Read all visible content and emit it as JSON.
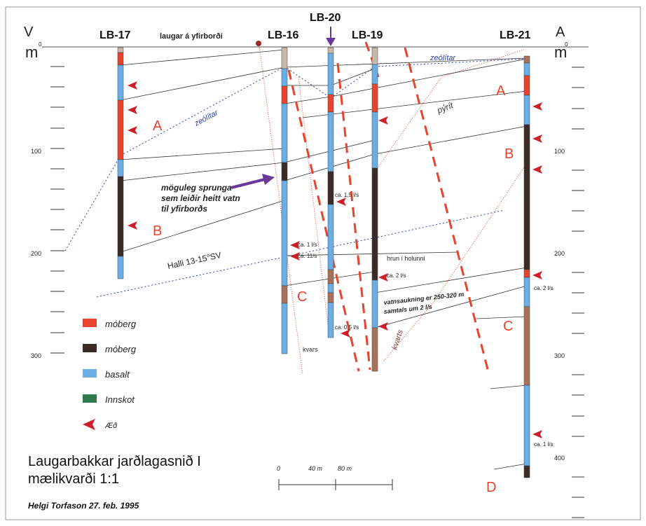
{
  "colors": {
    "moberg_red": "#e8432c",
    "moberg_dark": "#3a2a28",
    "basalt": "#6aaee6",
    "innskot": "#2f7a4a",
    "arrow": "#cc1f2a",
    "dash": "#e8432c",
    "dotted": "#2b3fb0",
    "purple_arrow": "#6a3a9a"
  },
  "labels": {
    "axis_left_letter": "V",
    "axis_right_letter": "A",
    "axis_unit": "m",
    "axis_zero": "0",
    "tick_100": "100",
    "tick_200": "200",
    "tick_300": "300",
    "tick_400": "400",
    "well_lb17": "LB-17",
    "well_lb16": "LB-16",
    "well_lb20": "LB-20",
    "well_lb19": "LB-19",
    "well_lb21": "LB-21",
    "surface_spring": "laugar á yfirborði",
    "zeolitar_top": "zeólítar",
    "zeolitar_mid": "zeólítar",
    "pyrit": "pýrít",
    "kvars_lb16": "kvars",
    "kvars_lb19": "kvarts",
    "fracture_1": "möguleg sprunga",
    "fracture_2": "sem leiðir heitt vatn",
    "fracture_3": "til yfirborðs",
    "halli": "Halli 13-15°SV",
    "hrun": "hrun í holunni",
    "vatn_1": "vatnsaukning er 250-320 m",
    "vatn_2": "samtals um 2 l/s",
    "zone_A_left": "A",
    "zone_B_left": "B",
    "zone_C_mid": "C",
    "zone_A_right": "A",
    "zone_B_right": "B",
    "zone_C_right": "C",
    "zone_D_right": "D",
    "flow_lb20_1": "ca. 1,5 l/s",
    "flow_lb16_1": "ca. 1 l/s",
    "flow_lb16_2": "ca. 11/s",
    "flow_lb19_1": "ca. 2 l/s",
    "flow_lb20_2": "ca. 0,5 l/s",
    "flow_lb21_1": "ca. 2 l/s",
    "flow_lb21_2": "ca. 1 l/s",
    "scale_0": "0",
    "scale_40": "40 m",
    "scale_80": "80 m",
    "title_line1": "Laugarbakkar jarðlagasnið I",
    "title_line2": "mælikvarði 1:1",
    "author": "Helgi Torfason 27. feb. 1995"
  },
  "legend": [
    {
      "label": "móberg",
      "color": "#e8432c",
      "kind": "box"
    },
    {
      "label": "móberg",
      "color": "#3a2a28",
      "kind": "box"
    },
    {
      "label": "basalt",
      "color": "#6aaee6",
      "kind": "box"
    },
    {
      "label": "Innskot",
      "color": "#2f7a4a",
      "kind": "box"
    },
    {
      "label": "Æð",
      "color": "#cc1f2a",
      "kind": "arrow"
    }
  ]
}
